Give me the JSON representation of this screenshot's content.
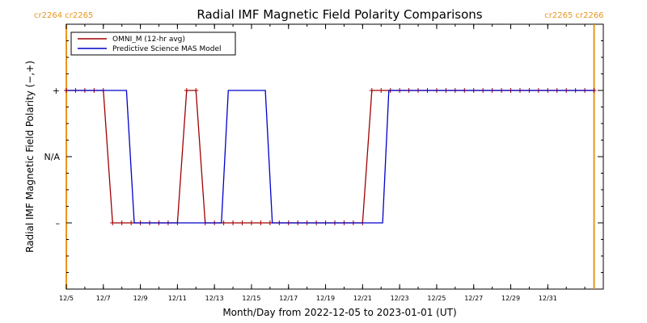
{
  "chart_data": {
    "type": "line",
    "title": "Radial IMF Magnetic Field Polarity Comparisons",
    "xlabel": "Month/Day from 2022-12-05 to 2023-01-01 (UT)",
    "ylabel": "Radial IMF Magnetic Field Polarity (−,+)",
    "xlim": [
      "2022-12-05",
      "2023-01-03"
    ],
    "ylim": [
      -2,
      2
    ],
    "x_tick_labels": [
      "12/5",
      "12/7",
      "12/9",
      "12/11",
      "12/13",
      "12/15",
      "12/17",
      "12/19",
      "12/21",
      "12/23",
      "12/25",
      "12/27",
      "12/29",
      "12/31"
    ],
    "x_tick_dates": [
      "2022-12-05",
      "2022-12-07",
      "2022-12-09",
      "2022-12-11",
      "2022-12-13",
      "2022-12-15",
      "2022-12-17",
      "2022-12-19",
      "2022-12-21",
      "2022-12-23",
      "2022-12-25",
      "2022-12-27",
      "2022-12-29",
      "2022-12-31"
    ],
    "y_ticks": [
      {
        "value": 1,
        "label": "+"
      },
      {
        "value": 0,
        "label": "N/A"
      },
      {
        "value": -1,
        "label": "–"
      }
    ],
    "carrington_markers": [
      {
        "date": "2022-12-05",
        "label": "cr2264 cr2265",
        "color": "#e8961e",
        "label_position": "left"
      },
      {
        "date": "2023-01-02T12:00",
        "label": "cr2265 cr2266",
        "color": "#e8961e",
        "label_position": "right"
      }
    ],
    "legend_position": "top-left",
    "series": [
      {
        "name": "OMNI_M (12-hr avg)",
        "color": "#a00000",
        "markers": true,
        "points": [
          [
            "2022-12-05T00:00",
            1
          ],
          [
            "2022-12-05T12:00",
            1
          ],
          [
            "2022-12-06T00:00",
            1
          ],
          [
            "2022-12-06T12:00",
            1
          ],
          [
            "2022-12-07T00:00",
            1
          ],
          [
            "2022-12-07T12:00",
            -1
          ],
          [
            "2022-12-08T00:00",
            -1
          ],
          [
            "2022-12-08T12:00",
            -1
          ],
          [
            "2022-12-09T00:00",
            -1
          ],
          [
            "2022-12-09T12:00",
            -1
          ],
          [
            "2022-12-10T00:00",
            -1
          ],
          [
            "2022-12-10T12:00",
            -1
          ],
          [
            "2022-12-11T00:00",
            -1
          ],
          [
            "2022-12-11T12:00",
            1
          ],
          [
            "2022-12-12T00:00",
            1
          ],
          [
            "2022-12-12T12:00",
            -1
          ],
          [
            "2022-12-13T00:00",
            -1
          ],
          [
            "2022-12-13T12:00",
            -1
          ],
          [
            "2022-12-14T00:00",
            -1
          ],
          [
            "2022-12-14T12:00",
            -1
          ],
          [
            "2022-12-15T00:00",
            -1
          ],
          [
            "2022-12-15T12:00",
            -1
          ],
          [
            "2022-12-16T00:00",
            -1
          ],
          [
            "2022-12-16T12:00",
            -1
          ],
          [
            "2022-12-17T00:00",
            -1
          ],
          [
            "2022-12-17T12:00",
            -1
          ],
          [
            "2022-12-18T00:00",
            -1
          ],
          [
            "2022-12-18T12:00",
            -1
          ],
          [
            "2022-12-19T00:00",
            -1
          ],
          [
            "2022-12-19T12:00",
            -1
          ],
          [
            "2022-12-20T00:00",
            -1
          ],
          [
            "2022-12-20T12:00",
            -1
          ],
          [
            "2022-12-21T00:00",
            -1
          ],
          [
            "2022-12-21T12:00",
            1
          ],
          [
            "2022-12-22T00:00",
            1
          ],
          [
            "2022-12-22T12:00",
            1
          ],
          [
            "2022-12-23T00:00",
            1
          ],
          [
            "2022-12-23T12:00",
            1
          ],
          [
            "2022-12-24T00:00",
            1
          ],
          [
            "2022-12-24T12:00",
            1
          ],
          [
            "2022-12-25T00:00",
            1
          ],
          [
            "2022-12-25T12:00",
            1
          ],
          [
            "2022-12-26T00:00",
            1
          ],
          [
            "2022-12-26T12:00",
            1
          ],
          [
            "2022-12-27T00:00",
            1
          ],
          [
            "2022-12-27T12:00",
            1
          ],
          [
            "2022-12-28T00:00",
            1
          ],
          [
            "2022-12-28T12:00",
            1
          ],
          [
            "2022-12-29T00:00",
            1
          ],
          [
            "2022-12-29T12:00",
            1
          ],
          [
            "2022-12-30T00:00",
            1
          ],
          [
            "2022-12-30T12:00",
            1
          ],
          [
            "2022-12-31T00:00",
            1
          ],
          [
            "2022-12-31T12:00",
            1
          ],
          [
            "2023-01-01T00:00",
            1
          ],
          [
            "2023-01-01T12:00",
            1
          ],
          [
            "2023-01-02T00:00",
            1
          ],
          [
            "2023-01-02T12:00",
            1
          ]
        ]
      },
      {
        "name": "Predictive Science MAS Model",
        "color": "#0000cc",
        "markers": false,
        "points": [
          [
            "2022-12-05T00:00",
            1
          ],
          [
            "2022-12-08T06:00",
            1
          ],
          [
            "2022-12-08T16:00",
            -1
          ],
          [
            "2022-12-13T09:00",
            -1
          ],
          [
            "2022-12-13T18:00",
            1
          ],
          [
            "2022-12-15T18:00",
            1
          ],
          [
            "2022-12-16T03:00",
            -1
          ],
          [
            "2022-12-22T02:00",
            -1
          ],
          [
            "2022-12-22T10:00",
            1
          ],
          [
            "2023-01-02T12:00",
            1
          ]
        ]
      }
    ]
  }
}
